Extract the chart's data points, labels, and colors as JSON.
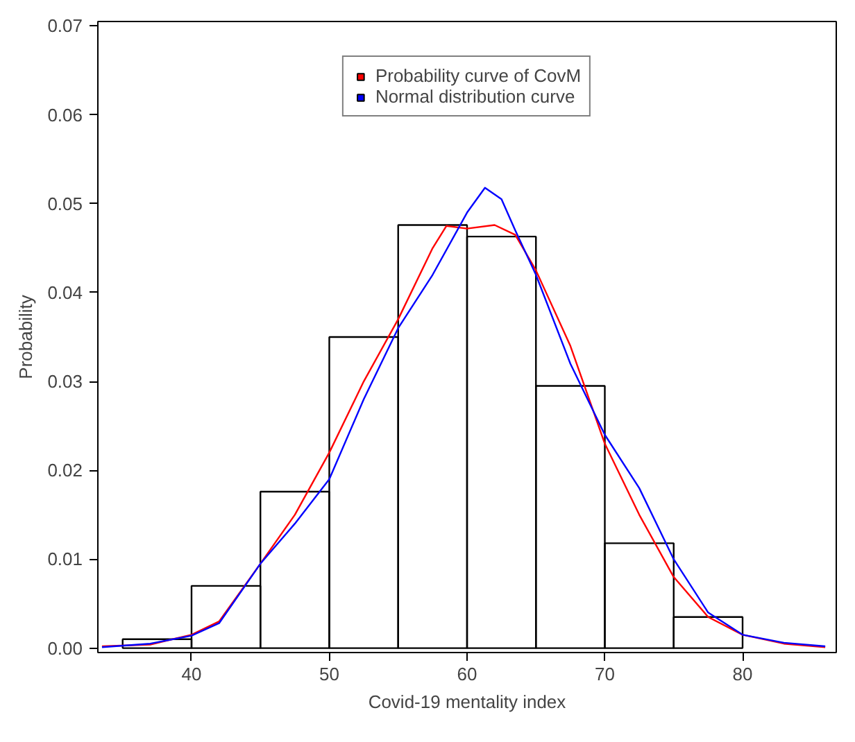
{
  "chart_data": {
    "type": "histogram",
    "xlabel": "Covid-19 mentality index",
    "ylabel": "Probability",
    "bins": [
      35,
      40,
      45,
      50,
      55,
      60,
      65,
      70,
      75,
      80
    ],
    "values": [
      0.001,
      0.007,
      0.0176,
      0.035,
      0.0476,
      0.0463,
      0.0295,
      0.0118,
      0.0035
    ],
    "color": "#000000",
    "xlim": [
      33.2,
      86.8
    ],
    "ylim": [
      -0.0005,
      0.0705
    ],
    "xticks": [
      40,
      50,
      60,
      70,
      80
    ],
    "yticks": [
      {
        "value": 0,
        "label": "0.00"
      },
      {
        "value": 0.01,
        "label": "0.01"
      },
      {
        "value": 0.02,
        "label": "0.02"
      },
      {
        "value": 0.03,
        "label": "0.03"
      },
      {
        "value": 0.04,
        "label": "0.04"
      },
      {
        "value": 0.05,
        "label": "0.05"
      },
      {
        "value": 0.06,
        "label": "0.06"
      },
      {
        "value": 0.07,
        "label": "0.07"
      }
    ],
    "grid": false,
    "legend": "top",
    "line_style": "solid",
    "marker": "none",
    "series": [
      {
        "name": "Probability curve of CovM",
        "color": "#ff0000",
        "type": "line",
        "x": [
          33.5,
          37,
          40,
          42,
          45,
          47.5,
          50,
          52.5,
          55,
          57.5,
          58.5,
          60,
          62,
          63.5,
          65,
          67.5,
          70,
          72.5,
          75,
          77.5,
          80,
          83,
          86
        ],
        "values": [
          0.0002,
          0.0004,
          0.0015,
          0.003,
          0.0095,
          0.015,
          0.022,
          0.03,
          0.037,
          0.045,
          0.0475,
          0.0472,
          0.0476,
          0.0465,
          0.0425,
          0.034,
          0.023,
          0.015,
          0.008,
          0.0035,
          0.0015,
          0.0005,
          0.0001
        ]
      },
      {
        "name": "Normal distribution curve",
        "color": "#0000ff",
        "type": "line",
        "x": [
          33.5,
          37,
          40,
          42,
          45,
          47.5,
          50,
          52.5,
          55,
          57.5,
          60,
          61.3,
          62.5,
          63.5,
          65,
          67.5,
          70,
          72.5,
          75,
          77.5,
          80,
          83,
          86
        ],
        "values": [
          0.0001,
          0.0005,
          0.0014,
          0.0028,
          0.0095,
          0.014,
          0.019,
          0.028,
          0.036,
          0.042,
          0.049,
          0.0518,
          0.0505,
          0.047,
          0.042,
          0.032,
          0.024,
          0.018,
          0.01,
          0.004,
          0.0015,
          0.0006,
          0.0002
        ]
      }
    ]
  }
}
